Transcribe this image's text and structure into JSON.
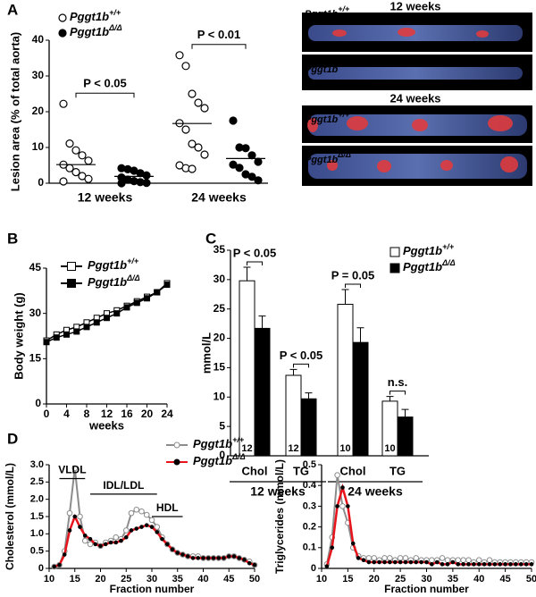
{
  "figure": {
    "panel_labels": [
      "A",
      "B",
      "C",
      "D"
    ]
  },
  "image_panel": {
    "titles": [
      "12 weeks",
      "24 weeks"
    ],
    "labels": [
      {
        "name": "Pggt1b",
        "superscript": "+/+"
      },
      {
        "name": "Pggt1b",
        "superscript": "Δ/Δ"
      }
    ]
  },
  "chart_data": [
    {
      "type": "dotplot",
      "ylabel": "Lesion area (% of total aorta)",
      "categories": [
        "12 weeks",
        "24 weeks"
      ],
      "ylim": [
        0,
        40
      ],
      "yticks": [
        0,
        10,
        20,
        30,
        40
      ],
      "series": [
        {
          "name": "Pggt1b",
          "superscript": "+/+",
          "marker": "open",
          "values": [
            [
              22.2,
              11.1,
              9.2,
              7.8,
              6.3,
              5.2,
              4.2,
              3.1,
              2.0,
              1.2,
              0.5
            ],
            [
              35.8,
              32.8,
              25,
              22.5,
              21,
              16.8,
              15,
              11,
              10,
              8,
              5,
              4.2,
              4
            ]
          ],
          "means": [
            5.2,
            16.7
          ]
        },
        {
          "name": "Pggt1b",
          "superscript": "Δ/Δ",
          "marker": "filled",
          "values": [
            [
              4.2,
              3.9,
              3.5,
              2.8,
              2.2,
              1.6,
              1.0,
              0.6,
              0.3,
              0.1,
              0
            ],
            [
              17.5,
              10,
              9.8,
              7.8,
              6,
              5.2,
              4.3,
              2.5,
              1.8,
              0.8
            ]
          ],
          "means": [
            1.9,
            6.9
          ]
        }
      ],
      "annotations": [
        "P < 0.05",
        "P < 0.01"
      ]
    },
    {
      "type": "line",
      "xlabel": "weeks",
      "ylabel": "Body weight (g)",
      "x": [
        0,
        2,
        4,
        6,
        8,
        10,
        12,
        14,
        16,
        18,
        20,
        22,
        24
      ],
      "xlim": [
        0,
        24
      ],
      "xticks": [
        0,
        4,
        8,
        12,
        16,
        20,
        24
      ],
      "ylim": [
        0,
        45
      ],
      "yticks": [
        0,
        15,
        30,
        45
      ],
      "series": [
        {
          "name": "Pggt1b",
          "superscript": "+/+",
          "marker": "open-square",
          "color": "#000000",
          "values": [
            21,
            23,
            24.5,
            25.5,
            27,
            28.5,
            30,
            31,
            32.5,
            34,
            35.5,
            37,
            40
          ]
        },
        {
          "name": "Pggt1b",
          "superscript": "Δ/Δ",
          "marker": "filled-square",
          "color": "#000000",
          "values": [
            20.5,
            22,
            23,
            24,
            25.5,
            27,
            28.5,
            30,
            32,
            33.5,
            35,
            37,
            39.5
          ]
        }
      ]
    },
    {
      "type": "bar",
      "ylabel": "mmol/L",
      "categories": [
        "Chol",
        "TG",
        "Chol",
        "TG"
      ],
      "groups": [
        "12 weeks",
        "24 weeks"
      ],
      "ylim": [
        0,
        35
      ],
      "yticks": [
        0,
        5,
        10,
        15,
        20,
        25,
        30,
        35
      ],
      "series": [
        {
          "name": "Pggt1b",
          "superscript": "+/+",
          "color": "#ffffff",
          "values": [
            29.8,
            13.7,
            25.8,
            9.3
          ],
          "errors": [
            2.3,
            1.0,
            2.5,
            0.8
          ],
          "n": [
            12,
            12,
            10,
            10
          ]
        },
        {
          "name": "Pggt1b",
          "superscript": "Δ/Δ",
          "color": "#000000",
          "values": [
            21.7,
            9.7,
            19.3,
            6.6
          ],
          "errors": [
            2.1,
            1.0,
            2.5,
            1.3
          ],
          "n": [
            12,
            12,
            10,
            10
          ]
        }
      ],
      "annotations": [
        "P < 0.05",
        "P < 0.05",
        "P = 0.05",
        "n.s."
      ]
    },
    {
      "type": "line",
      "xlabel": "Fraction number",
      "ylabel": "Cholesterol (mmol/L)",
      "x": [
        11,
        12,
        13,
        14,
        15,
        16,
        17,
        18,
        19,
        20,
        21,
        22,
        23,
        24,
        25,
        26,
        27,
        28,
        29,
        30,
        31,
        32,
        33,
        34,
        35,
        36,
        37,
        38,
        39,
        40,
        41,
        42,
        43,
        44,
        45,
        46,
        47,
        48,
        49,
        50
      ],
      "xlim": [
        10,
        50
      ],
      "xticks": [
        10,
        15,
        20,
        25,
        30,
        35,
        40,
        45,
        50
      ],
      "ylim": [
        0,
        3
      ],
      "yticks": [
        0,
        0.5,
        {
          "value": 1,
          "label": "1.0"
        },
        1.5,
        {
          "value": 2,
          "label": "2.0"
        },
        2.5,
        {
          "value": 3,
          "label": "3.0"
        }
      ],
      "regions": [
        "VLDL",
        "IDL/LDL",
        "HDL"
      ],
      "series": [
        {
          "name": "Pggt1b",
          "superscript": "+/+",
          "marker": "open-circle",
          "color": "#8c8c8c",
          "values": [
            0.05,
            0.1,
            0.5,
            1.6,
            2.9,
            1.5,
            0.8,
            0.7,
            0.75,
            0.65,
            0.75,
            0.8,
            0.9,
            0.85,
            1.1,
            1.6,
            1.7,
            1.65,
            1.55,
            1.4,
            1.2,
            0.9,
            0.7,
            0.55,
            0.45,
            0.4,
            0.35,
            0.35,
            0.35,
            0.3,
            0.3,
            0.3,
            0.3,
            0.3,
            0.35,
            0.35,
            0.3,
            0.25,
            0.2,
            0.1
          ]
        },
        {
          "name": "Pggt1b",
          "superscript": "Δ/Δ",
          "marker": "filled-circle",
          "color": "#e8141c",
          "values": [
            0.05,
            0.1,
            0.4,
            1.1,
            1.5,
            1.2,
            0.95,
            0.85,
            0.7,
            0.65,
            0.7,
            0.75,
            0.75,
            0.8,
            0.9,
            1.1,
            1.15,
            1.2,
            1.25,
            1.2,
            1.05,
            0.85,
            0.7,
            0.55,
            0.45,
            0.4,
            0.35,
            0.3,
            0.3,
            0.3,
            0.3,
            0.3,
            0.3,
            0.3,
            0.35,
            0.35,
            0.3,
            0.25,
            0.15,
            0.1
          ]
        }
      ]
    },
    {
      "type": "line",
      "xlabel": "Fraction number",
      "ylabel": "Triglycerides (mmol/L)",
      "x": [
        11,
        12,
        13,
        14,
        15,
        16,
        17,
        18,
        19,
        20,
        21,
        22,
        23,
        24,
        25,
        26,
        27,
        28,
        29,
        30,
        31,
        32,
        33,
        34,
        35,
        36,
        37,
        38,
        39,
        40,
        41,
        42,
        43,
        44,
        45,
        46,
        47,
        48,
        49,
        50
      ],
      "xlim": [
        10,
        50
      ],
      "xticks": [
        10,
        15,
        20,
        25,
        30,
        35,
        40,
        45,
        50
      ],
      "ylim": [
        0,
        0.5
      ],
      "yticks": [
        0,
        0.1,
        0.2,
        0.3,
        0.4,
        0.5
      ],
      "series": [
        {
          "marker": "open-circle",
          "color": "#8c8c8c",
          "values": [
            0.02,
            0.15,
            0.45,
            0.3,
            0.22,
            0.1,
            0.06,
            0.05,
            0.05,
            0.05,
            0.04,
            0.05,
            0.05,
            0.04,
            0.05,
            0.05,
            0.04,
            0.05,
            0.04,
            0.04,
            0.04,
            0.04,
            0.05,
            0.04,
            0.04,
            0.04,
            0.04,
            0.04,
            0.03,
            0.04,
            0.03,
            0.04,
            0.03,
            0.03,
            0.03,
            0.03,
            0.03,
            0.03,
            0.03,
            0.03
          ]
        },
        {
          "marker": "filled-circle",
          "color": "#e8141c",
          "values": [
            0.01,
            0.1,
            0.3,
            0.39,
            0.3,
            0.12,
            0.05,
            0.04,
            0.03,
            0.03,
            0.03,
            0.03,
            0.03,
            0.03,
            0.03,
            0.03,
            0.03,
            0.03,
            0.03,
            0.03,
            0.02,
            0.03,
            0.02,
            0.02,
            0.03,
            0.02,
            0.02,
            0.02,
            0.02,
            0.02,
            0.02,
            0.02,
            0.02,
            0.02,
            0.02,
            0.02,
            0.02,
            0.02,
            0.02,
            0.02
          ]
        }
      ]
    }
  ]
}
